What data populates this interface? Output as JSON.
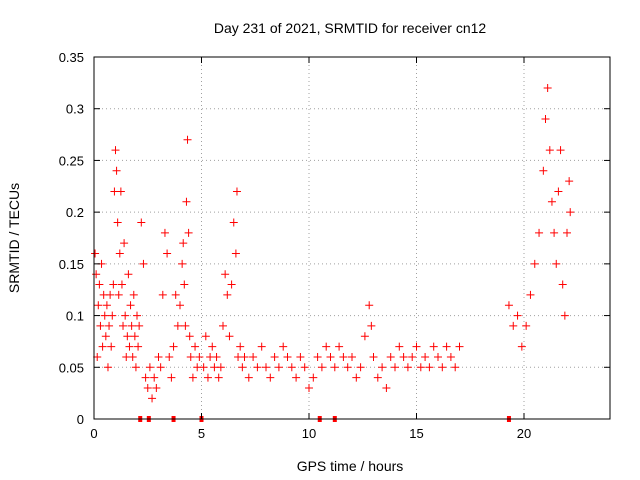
{
  "chart_data": {
    "type": "scatter",
    "title": "Day 231 of 2021, SRMTID for receiver cn12",
    "xlabel": "GPS time / hours",
    "ylabel": "SRMTID / TECUs",
    "xlim": [
      0,
      24
    ],
    "ylim": [
      0,
      0.35
    ],
    "xticks": [
      "0",
      "5",
      "10",
      "15",
      "20"
    ],
    "yticks": [
      "0",
      "0.05",
      "0.1",
      "0.15",
      "0.2",
      "0.25",
      "0.3",
      "0.35"
    ],
    "grid": true,
    "marker": "plus",
    "color": "#ff0000",
    "zero_markers_x": [
      2.15,
      2.55,
      3.7,
      5.0,
      10.5,
      11.2,
      19.3
    ],
    "series": [
      {
        "name": "SRMTID",
        "points": [
          [
            0.05,
            0.16
          ],
          [
            0.1,
            0.14
          ],
          [
            0.15,
            0.06
          ],
          [
            0.2,
            0.11
          ],
          [
            0.25,
            0.13
          ],
          [
            0.3,
            0.09
          ],
          [
            0.35,
            0.15
          ],
          [
            0.4,
            0.07
          ],
          [
            0.45,
            0.12
          ],
          [
            0.5,
            0.1
          ],
          [
            0.55,
            0.08
          ],
          [
            0.6,
            0.11
          ],
          [
            0.65,
            0.05
          ],
          [
            0.7,
            0.09
          ],
          [
            0.75,
            0.12
          ],
          [
            0.8,
            0.07
          ],
          [
            0.85,
            0.1
          ],
          [
            0.9,
            0.13
          ],
          [
            0.95,
            0.22
          ],
          [
            1.0,
            0.26
          ],
          [
            1.05,
            0.24
          ],
          [
            1.1,
            0.19
          ],
          [
            1.15,
            0.12
          ],
          [
            1.2,
            0.16
          ],
          [
            1.25,
            0.22
          ],
          [
            1.3,
            0.13
          ],
          [
            1.35,
            0.09
          ],
          [
            1.4,
            0.17
          ],
          [
            1.45,
            0.1
          ],
          [
            1.5,
            0.06
          ],
          [
            1.55,
            0.08
          ],
          [
            1.6,
            0.14
          ],
          [
            1.65,
            0.07
          ],
          [
            1.7,
            0.11
          ],
          [
            1.75,
            0.09
          ],
          [
            1.8,
            0.06
          ],
          [
            1.85,
            0.12
          ],
          [
            1.9,
            0.08
          ],
          [
            1.95,
            0.05
          ],
          [
            2.0,
            0.1
          ],
          [
            2.05,
            0.07
          ],
          [
            2.1,
            0.09
          ],
          [
            2.2,
            0.19
          ],
          [
            2.3,
            0.15
          ],
          [
            2.4,
            0.04
          ],
          [
            2.5,
            0.03
          ],
          [
            2.6,
            0.05
          ],
          [
            2.7,
            0.02
          ],
          [
            2.8,
            0.04
          ],
          [
            2.9,
            0.03
          ],
          [
            3.0,
            0.06
          ],
          [
            3.1,
            0.05
          ],
          [
            3.2,
            0.12
          ],
          [
            3.3,
            0.18
          ],
          [
            3.4,
            0.16
          ],
          [
            3.5,
            0.06
          ],
          [
            3.6,
            0.04
          ],
          [
            3.7,
            0.07
          ],
          [
            3.8,
            0.12
          ],
          [
            3.9,
            0.09
          ],
          [
            4.0,
            0.11
          ],
          [
            4.1,
            0.15
          ],
          [
            4.15,
            0.17
          ],
          [
            4.2,
            0.13
          ],
          [
            4.25,
            0.09
          ],
          [
            4.3,
            0.21
          ],
          [
            4.35,
            0.27
          ],
          [
            4.4,
            0.18
          ],
          [
            4.45,
            0.08
          ],
          [
            4.5,
            0.06
          ],
          [
            4.6,
            0.04
          ],
          [
            4.7,
            0.07
          ],
          [
            4.8,
            0.05
          ],
          [
            4.9,
            0.06
          ],
          [
            5.1,
            0.05
          ],
          [
            5.2,
            0.08
          ],
          [
            5.3,
            0.04
          ],
          [
            5.4,
            0.06
          ],
          [
            5.5,
            0.07
          ],
          [
            5.6,
            0.05
          ],
          [
            5.7,
            0.06
          ],
          [
            5.8,
            0.04
          ],
          [
            5.9,
            0.05
          ],
          [
            6.0,
            0.09
          ],
          [
            6.1,
            0.14
          ],
          [
            6.2,
            0.12
          ],
          [
            6.3,
            0.08
          ],
          [
            6.4,
            0.13
          ],
          [
            6.5,
            0.19
          ],
          [
            6.6,
            0.16
          ],
          [
            6.65,
            0.22
          ],
          [
            6.7,
            0.06
          ],
          [
            6.8,
            0.07
          ],
          [
            6.9,
            0.05
          ],
          [
            7.0,
            0.06
          ],
          [
            7.2,
            0.04
          ],
          [
            7.4,
            0.06
          ],
          [
            7.6,
            0.05
          ],
          [
            7.8,
            0.07
          ],
          [
            8.0,
            0.05
          ],
          [
            8.2,
            0.04
          ],
          [
            8.4,
            0.06
          ],
          [
            8.6,
            0.05
          ],
          [
            8.8,
            0.07
          ],
          [
            9.0,
            0.06
          ],
          [
            9.2,
            0.05
          ],
          [
            9.4,
            0.04
          ],
          [
            9.6,
            0.06
          ],
          [
            9.8,
            0.05
          ],
          [
            10.0,
            0.03
          ],
          [
            10.2,
            0.04
          ],
          [
            10.4,
            0.06
          ],
          [
            10.6,
            0.05
          ],
          [
            10.8,
            0.07
          ],
          [
            11.0,
            0.06
          ],
          [
            11.2,
            0.05
          ],
          [
            11.4,
            0.07
          ],
          [
            11.6,
            0.06
          ],
          [
            11.8,
            0.05
          ],
          [
            12.0,
            0.06
          ],
          [
            12.2,
            0.04
          ],
          [
            12.4,
            0.05
          ],
          [
            12.6,
            0.08
          ],
          [
            12.8,
            0.11
          ],
          [
            12.9,
            0.09
          ],
          [
            13.0,
            0.06
          ],
          [
            13.2,
            0.04
          ],
          [
            13.4,
            0.05
          ],
          [
            13.6,
            0.03
          ],
          [
            13.8,
            0.06
          ],
          [
            14.0,
            0.05
          ],
          [
            14.2,
            0.07
          ],
          [
            14.4,
            0.06
          ],
          [
            14.6,
            0.05
          ],
          [
            14.8,
            0.06
          ],
          [
            15.0,
            0.07
          ],
          [
            15.2,
            0.05
          ],
          [
            15.4,
            0.06
          ],
          [
            15.6,
            0.05
          ],
          [
            15.8,
            0.07
          ],
          [
            16.0,
            0.06
          ],
          [
            16.2,
            0.05
          ],
          [
            16.4,
            0.07
          ],
          [
            16.6,
            0.06
          ],
          [
            16.8,
            0.05
          ],
          [
            17.0,
            0.07
          ],
          [
            19.3,
            0.11
          ],
          [
            19.5,
            0.09
          ],
          [
            19.7,
            0.1
          ],
          [
            19.9,
            0.07
          ],
          [
            20.1,
            0.09
          ],
          [
            20.3,
            0.12
          ],
          [
            20.5,
            0.15
          ],
          [
            20.7,
            0.18
          ],
          [
            20.9,
            0.24
          ],
          [
            21.0,
            0.29
          ],
          [
            21.1,
            0.32
          ],
          [
            21.2,
            0.26
          ],
          [
            21.3,
            0.21
          ],
          [
            21.4,
            0.18
          ],
          [
            21.5,
            0.15
          ],
          [
            21.6,
            0.22
          ],
          [
            21.7,
            0.26
          ],
          [
            21.8,
            0.13
          ],
          [
            21.9,
            0.1
          ],
          [
            22.0,
            0.18
          ],
          [
            22.1,
            0.23
          ],
          [
            22.15,
            0.2
          ]
        ]
      }
    ]
  }
}
